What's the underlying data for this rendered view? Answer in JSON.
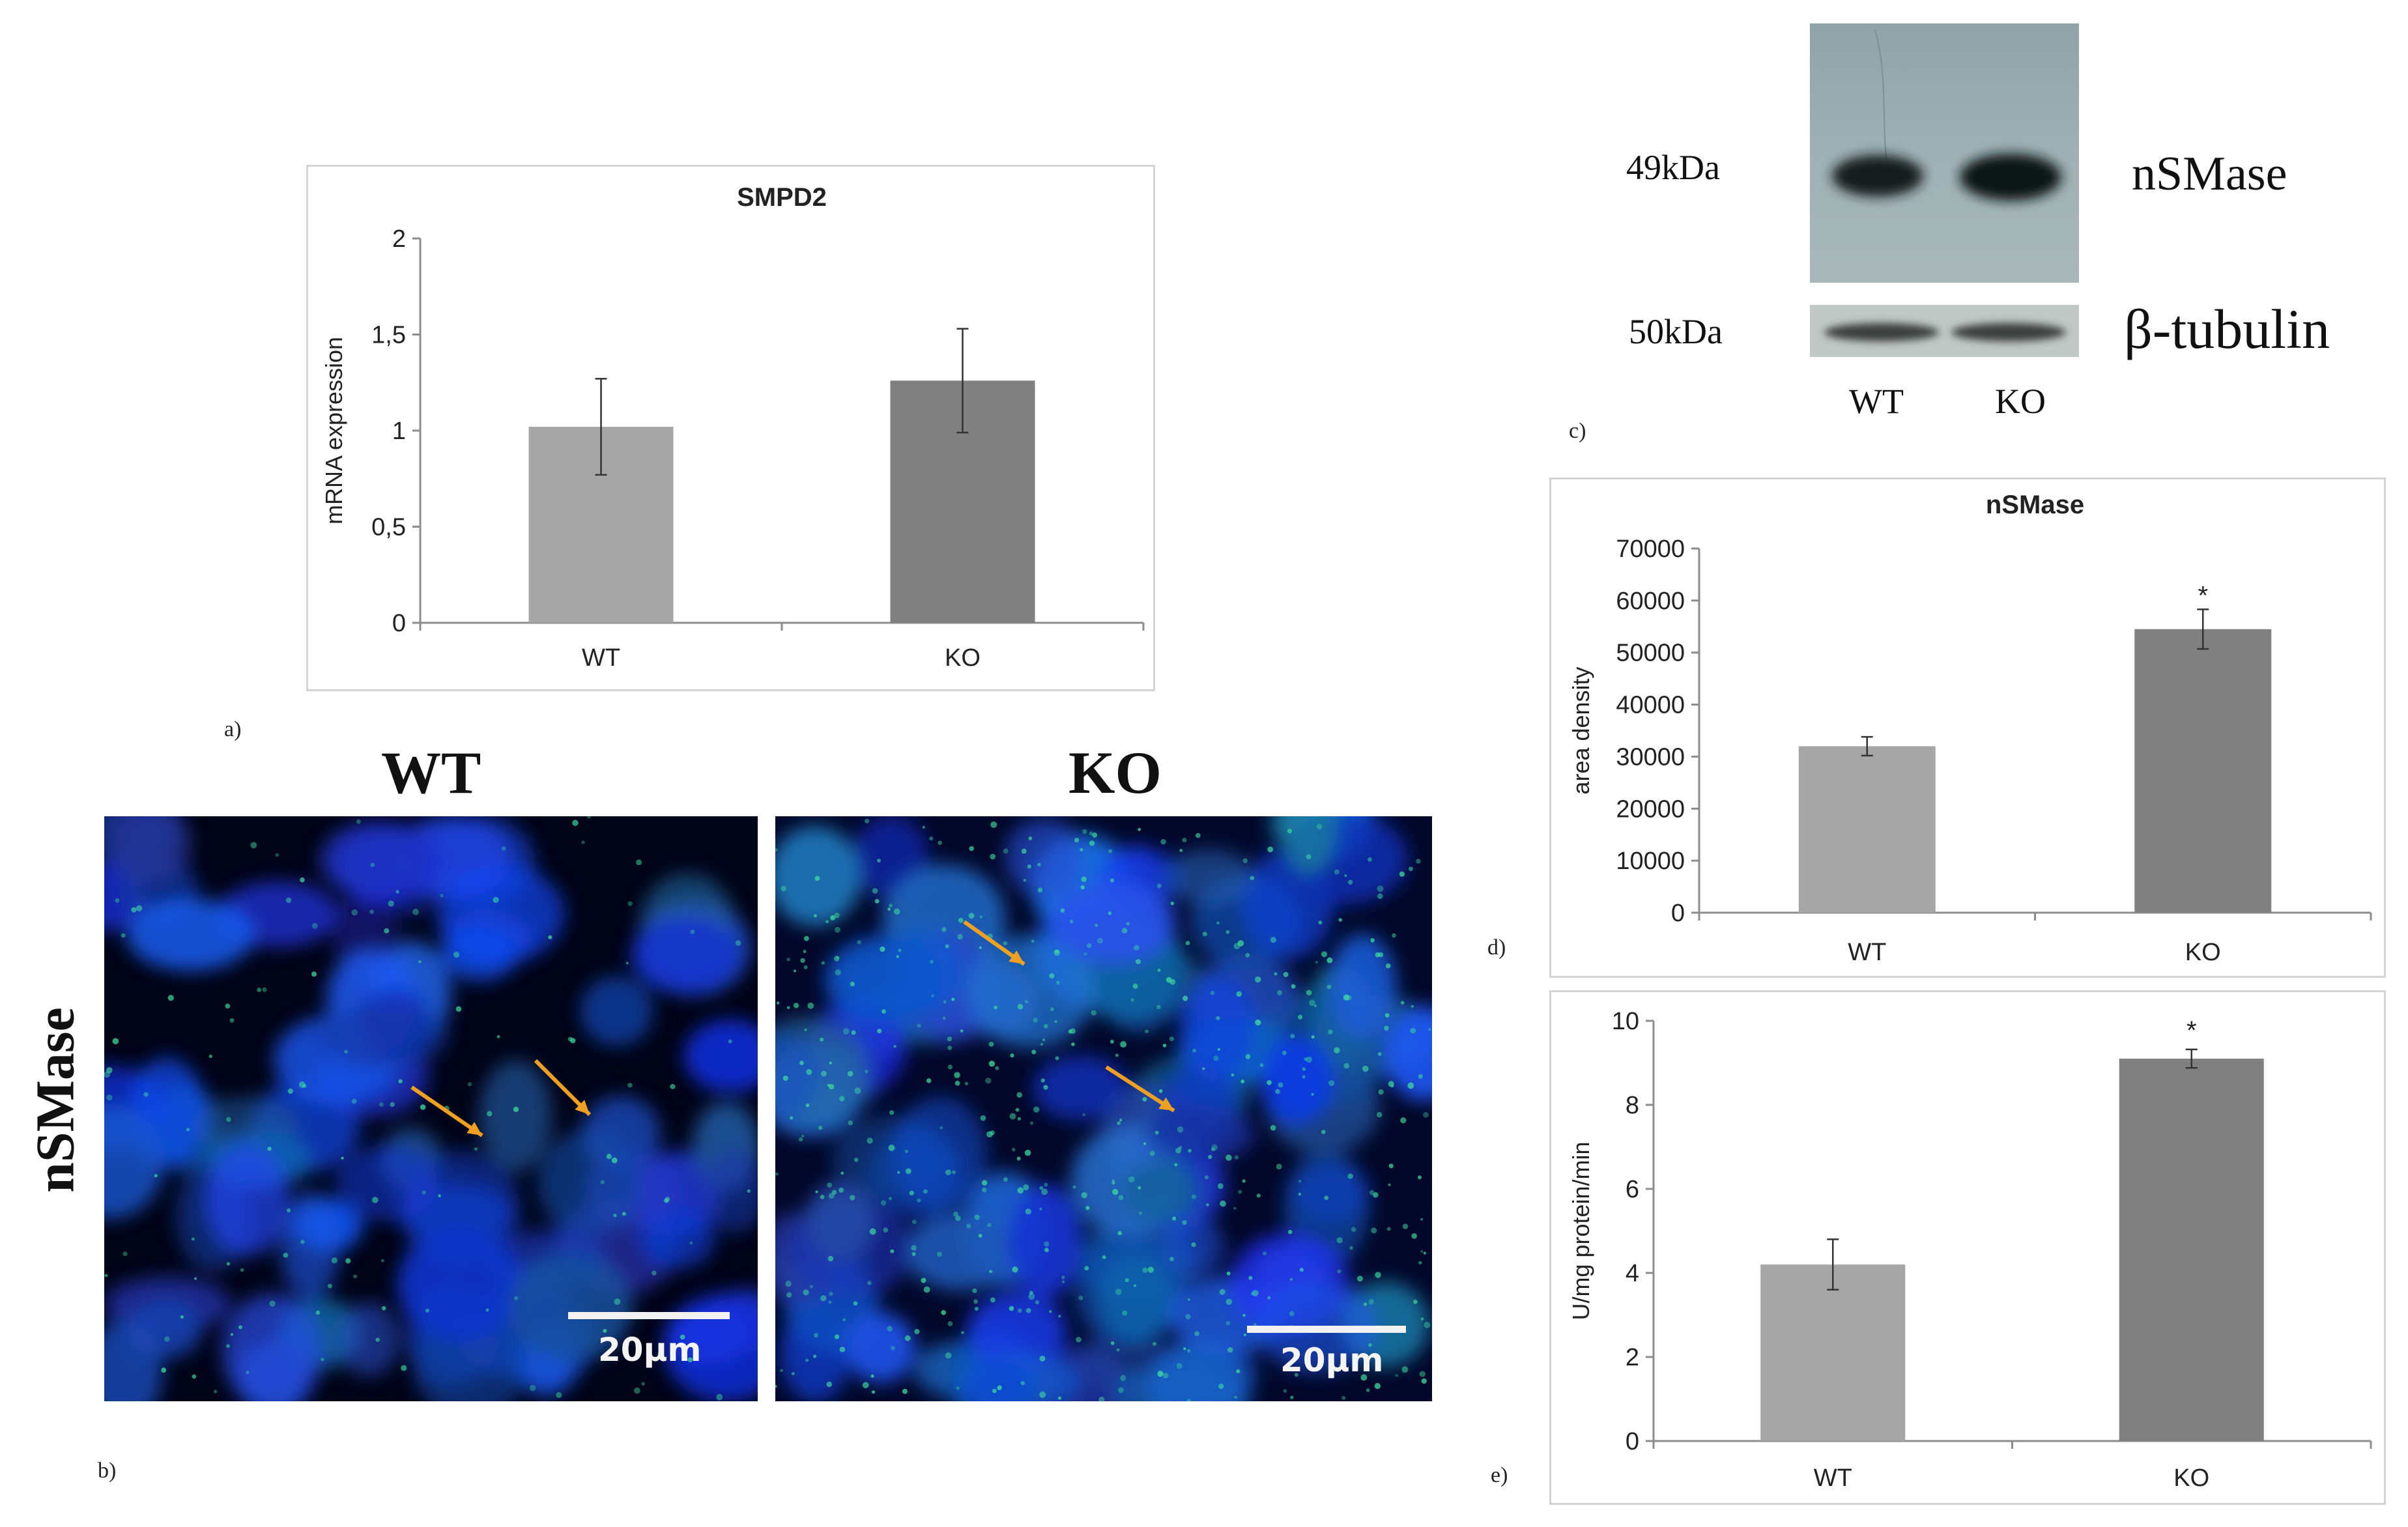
{
  "panel_letters": {
    "a": "a)",
    "b": "b)",
    "c": "c)",
    "d": "d)",
    "e": "e)"
  },
  "microscopy": {
    "row_label": "nSMase",
    "left_title": "WT",
    "right_title": "KO",
    "scale_left": "20µm",
    "scale_right": "20µm"
  },
  "blot": {
    "band1_mw": "49kDa",
    "band1_name": "nSMase",
    "band2_mw": "50kDa",
    "band2_name": "β-tubulin",
    "lane1": "WT",
    "lane2": "KO"
  },
  "colors": {
    "wt_bar": "#a6a6a6",
    "ko_bar": "#808080",
    "axis": "#8c8c8c",
    "arrow": "#f0a020",
    "nucleus": "#1a3fd6",
    "signal": "#3fe0a0"
  },
  "chart_data": [
    {
      "id": "a",
      "type": "bar",
      "title": "SMPD2",
      "xlabel": "",
      "ylabel": "mRNA expression",
      "categories": [
        "WT",
        "KO"
      ],
      "values": [
        1.02,
        1.26
      ],
      "errors": [
        0.25,
        0.27
      ],
      "ylim": [
        0,
        2
      ],
      "yticks": [
        "0",
        "0,5",
        "1",
        "1,5",
        "2"
      ],
      "annotations": [
        "",
        ""
      ],
      "grid": false
    },
    {
      "id": "d",
      "type": "bar",
      "title": "nSMase",
      "xlabel": "",
      "ylabel": "area density",
      "categories": [
        "WT",
        "KO"
      ],
      "values": [
        32000,
        54500
      ],
      "errors": [
        1800,
        3800
      ],
      "ylim": [
        0,
        70000
      ],
      "yticks": [
        "0",
        "10000",
        "20000",
        "30000",
        "40000",
        "50000",
        "60000",
        "70000"
      ],
      "annotations": [
        "",
        "*"
      ],
      "grid": false
    },
    {
      "id": "e",
      "type": "bar",
      "title": "",
      "xlabel": "",
      "ylabel": "U/mg protein/min",
      "categories": [
        "WT",
        "KO"
      ],
      "values": [
        4.2,
        9.1
      ],
      "errors": [
        0.6,
        0.22
      ],
      "ylim": [
        0,
        10
      ],
      "yticks": [
        "0",
        "2",
        "4",
        "6",
        "8",
        "10"
      ],
      "annotations": [
        "",
        "*"
      ],
      "grid": false
    }
  ]
}
